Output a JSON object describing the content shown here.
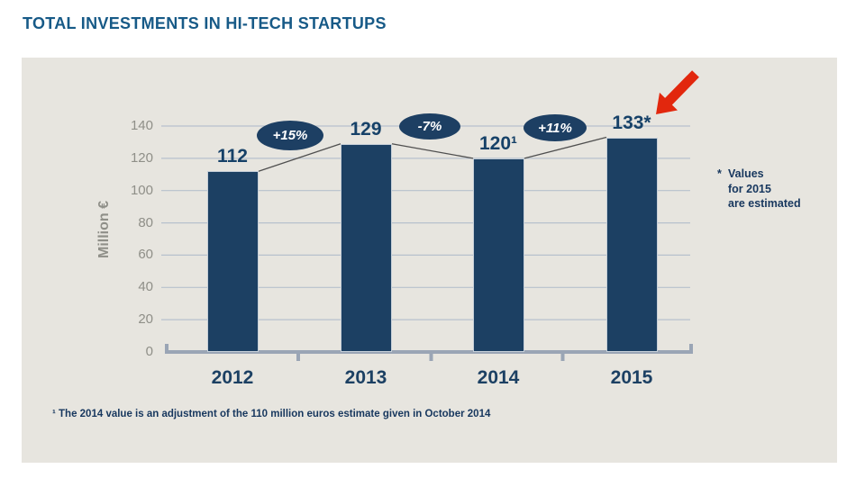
{
  "header": {
    "title": "TOTAL INVESTMENTS IN HI-TECH STARTUPS"
  },
  "chart_data": {
    "type": "bar",
    "title": "TOTAL INVESTMENTS IN HI-TECH STARTUPS",
    "categories": [
      "2012",
      "2013",
      "2014",
      "2015"
    ],
    "values": [
      112,
      129,
      120,
      133
    ],
    "bar_labels": [
      "112",
      "129",
      "120¹",
      "133*"
    ],
    "percent_change_badges": [
      "+15%",
      "-7%",
      "+11%"
    ],
    "ylabel": "Million €",
    "xlabel": "",
    "y_ticks": [
      0,
      20,
      40,
      60,
      80,
      100,
      120,
      140
    ],
    "ylim": [
      0,
      140
    ],
    "grid": true,
    "legend_position": "none",
    "annotations": {
      "estimate_note_star": "*",
      "estimate_note_lines": [
        "Values",
        "for 2015",
        "are estimated"
      ],
      "footnote": "¹ The 2014 value is an adjustment of the 110 million euros estimate given in October 2014",
      "arrow": "red arrow pointing at 2015 estimated value"
    }
  },
  "colors": {
    "bar": "#1c4063",
    "badge": "#1d3f63",
    "title": "#175a87",
    "value_text": "#164168",
    "note_text": "#17375e",
    "axis": "#9aa5b5",
    "gridline": "#b7c1cd",
    "tick_text": "#8f8f88",
    "panel_bg": "#e7e5df",
    "arrow_red": "#e2270d"
  }
}
